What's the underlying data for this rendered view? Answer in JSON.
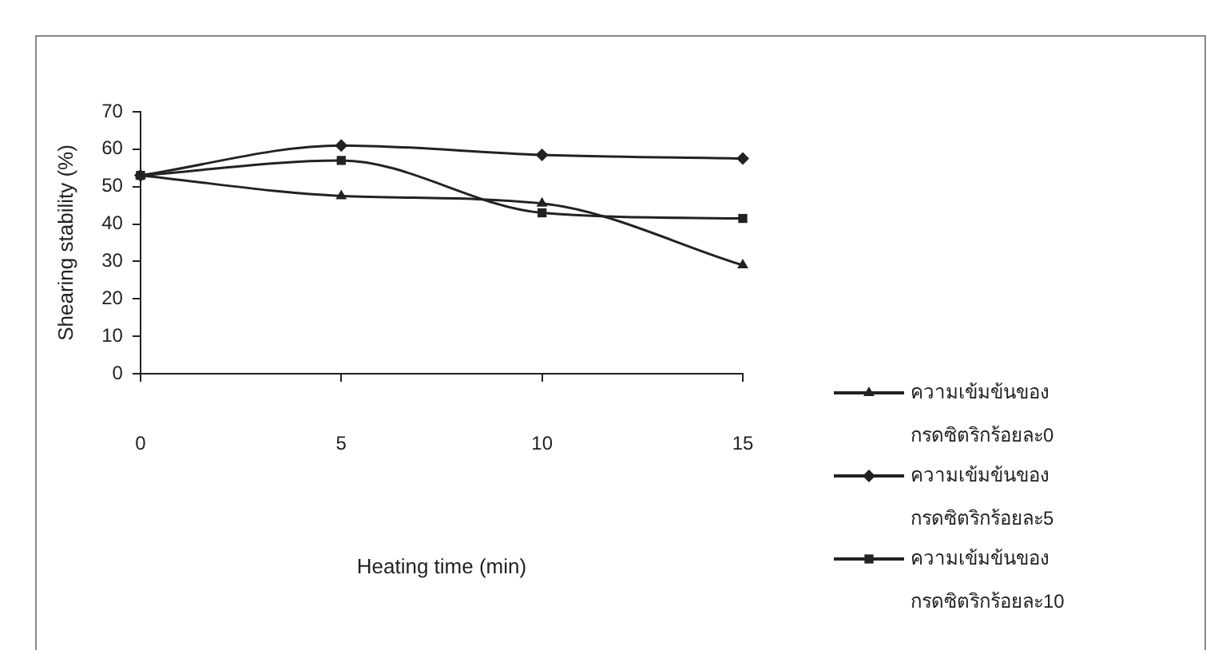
{
  "chart_data": {
    "type": "line",
    "xlabel": "Heating time (min)",
    "ylabel": "Shearing stability (%)",
    "categories": [
      "0",
      "5",
      "10",
      "15"
    ],
    "series": [
      {
        "name": "ความเข้มข้นของกรดซิตริกร้อยละ0",
        "color": "#222222",
        "marker": "triangle",
        "values": [
          53,
          47.5,
          45.5,
          29
        ]
      },
      {
        "name": "ความเข้มข้นของกรดซิตริกร้อยละ5",
        "color": "#222222",
        "marker": "diamond",
        "values": [
          53,
          61,
          58.5,
          57.5
        ]
      },
      {
        "name": "ความเข้มข้นของกรดซิตริกร้อยละ10",
        "color": "#222222",
        "marker": "square",
        "values": [
          53,
          57,
          43,
          41.5
        ]
      }
    ],
    "ylim": [
      0,
      70
    ],
    "yticks": [
      0,
      10,
      20,
      30,
      40,
      50,
      60,
      70
    ],
    "grid": false,
    "legend": "right",
    "line_style": "solid"
  }
}
